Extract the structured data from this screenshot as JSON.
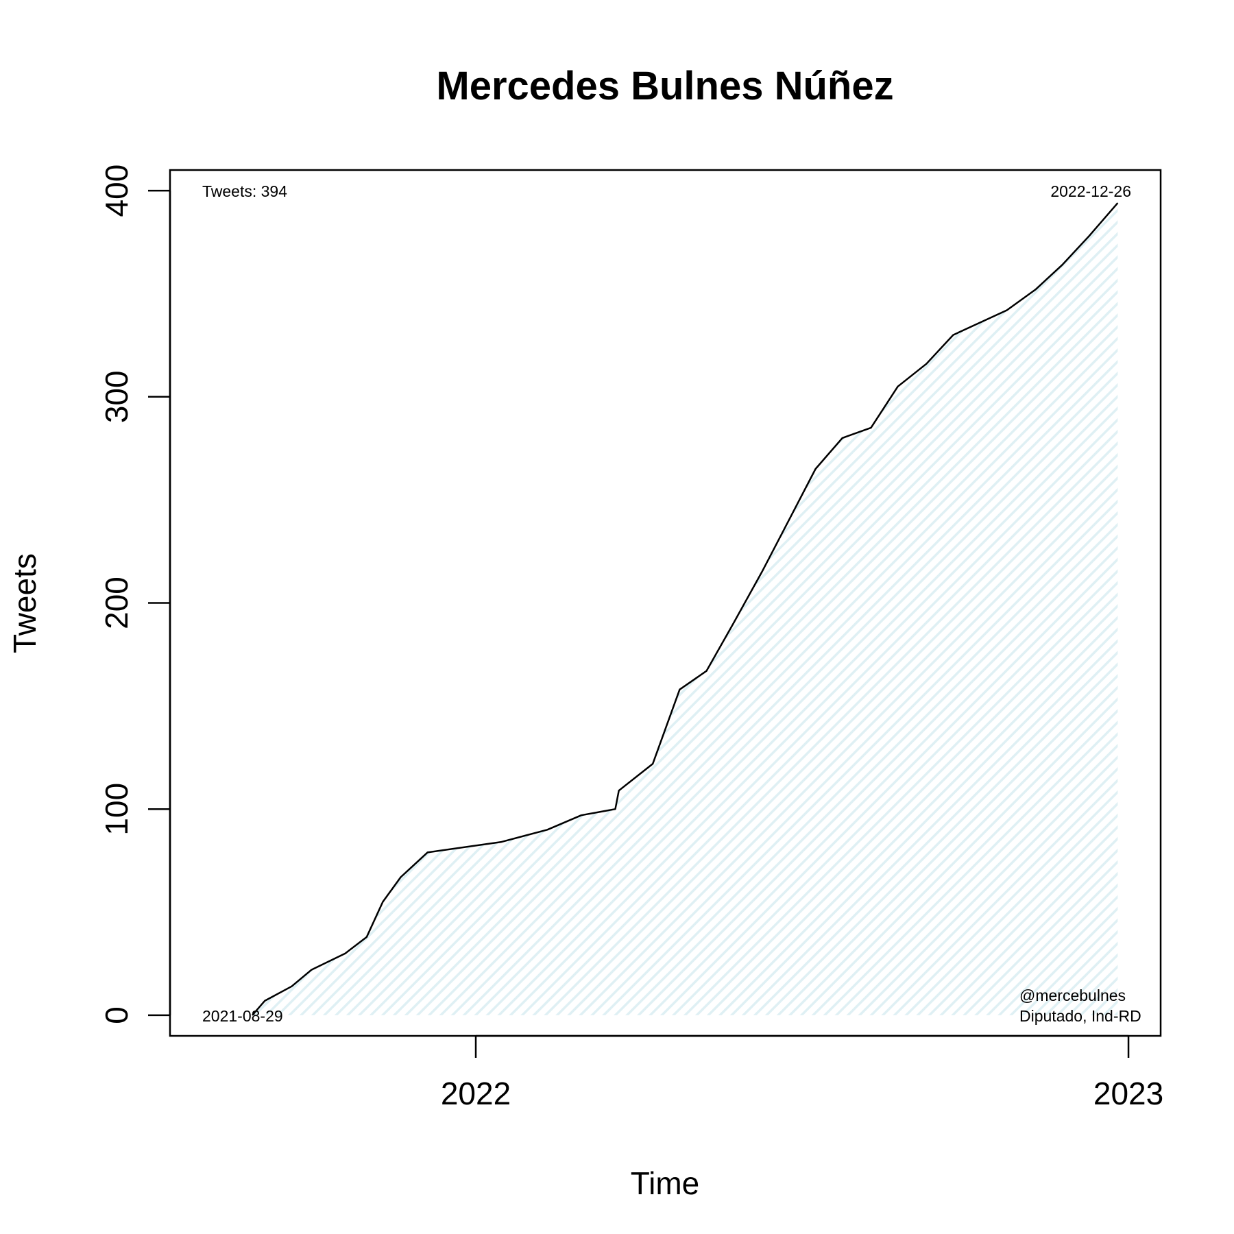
{
  "chart_data": {
    "type": "area",
    "title": "Mercedes Bulnes Núñez",
    "xlabel": "Time",
    "ylabel": "Tweets",
    "x_ticks": [
      "2022",
      "2023"
    ],
    "y_ticks": [
      0,
      100,
      200,
      300,
      400
    ],
    "ylim": [
      -10,
      410
    ],
    "xlim": [
      "2021-07-14",
      "2023-01-19"
    ],
    "grid": false,
    "line_color": "#000000",
    "fill_color": "#dff0f4",
    "annotations": {
      "total": "Tweets: 394",
      "start_date": "2021-08-29",
      "end_date": "2022-12-26",
      "handle": "@mercebulnes",
      "role": "Diputado, Ind-RD"
    },
    "series": [
      {
        "x": [
          "2021-08-29",
          "2021-09-05",
          "2021-09-20",
          "2021-10-01",
          "2021-10-20",
          "2021-11-01",
          "2021-11-10",
          "2021-11-20",
          "2021-12-05",
          "2022-01-15",
          "2022-02-10",
          "2022-03-01",
          "2022-03-20",
          "2022-03-22",
          "2022-04-10",
          "2022-04-25",
          "2022-05-10",
          "2022-05-25",
          "2022-06-10",
          "2022-06-25",
          "2022-07-10",
          "2022-07-25",
          "2022-08-10",
          "2022-08-25",
          "2022-09-10",
          "2022-09-25",
          "2022-10-10",
          "2022-10-25",
          "2022-11-10",
          "2022-11-25",
          "2022-12-10",
          "2022-12-26"
        ],
        "y": [
          0,
          7,
          14,
          22,
          30,
          38,
          55,
          67,
          79,
          84,
          90,
          97,
          100,
          109,
          122,
          158,
          167,
          190,
          215,
          240,
          265,
          280,
          285,
          305,
          316,
          330,
          336,
          342,
          352,
          364,
          378,
          394
        ]
      }
    ]
  }
}
